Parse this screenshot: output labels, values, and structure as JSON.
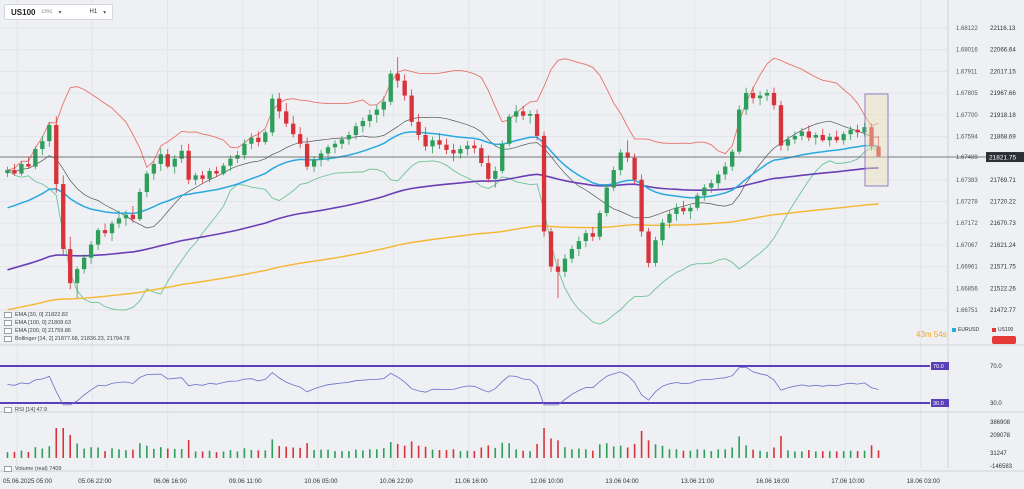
{
  "toolbar": {
    "symbol": "US100",
    "source": "cmc",
    "timeframe": "H1"
  },
  "colors": {
    "up": "#2e9e5b",
    "down": "#d8323a",
    "ema30": "#29a9e0",
    "ema100": "#6a3fb5",
    "ema200": "#f5b731",
    "boll_upper": "#e8736c",
    "boll_mid": "#555555",
    "boll_lower": "#6cc494",
    "rsi_line": "#6b6fc9",
    "rsi_level": "#5b3fb8",
    "price_badge": "#2b2f36",
    "eur_pill": "#29a9e0",
    "us100_pill": "#e53935"
  },
  "legend": [
    "EMA [30, 0]  21822.82",
    "EMA [100, 0]  21808.63",
    "EMA [200, 0]  21759.86",
    "Bollinger [14, 2]  21877.68,  21836.23,  21794.78"
  ],
  "rsi_label": "RSI [14]  47.9",
  "volume_label": "Volume (real)  7409",
  "timer": "43m 54s",
  "pills": {
    "eur": "EURUSD",
    "us100": "US100"
  },
  "chart_data": {
    "type": "candlestick",
    "price_axis_right": [
      "22116.13",
      "22066.64",
      "22017.15",
      "21967.66",
      "21918.18",
      "21868.69",
      "21821.75",
      "21769.71",
      "21720.22",
      "21670.73",
      "21621.24",
      "21571.75",
      "21522.26",
      "21472.77"
    ],
    "price_axis_left_eurusd": [
      "1.68122",
      "1.68016",
      "1.67911",
      "1.67805",
      "1.67700",
      "1.67594",
      "1.67489",
      "1.67383",
      "1.67278",
      "1.67172",
      "1.67067",
      "1.66961",
      "1.66856",
      "1.66751"
    ],
    "current_price": "21821.75",
    "x_tick_labels": [
      "05.06.2025  05:00",
      "05.06  22:00",
      "06.06  16:00",
      "09.06  11:00",
      "10.06  05:00",
      "10.06  22:00",
      "11.06  16:00",
      "12.06  10:00",
      "13.06  04:00",
      "13.06  21:00",
      "16.06  16:00",
      "17.06  10:00",
      "18.06  03:00"
    ],
    "candles_ohlc": [
      [
        21785,
        21800,
        21776,
        21792
      ],
      [
        21792,
        21806,
        21780,
        21784
      ],
      [
        21784,
        21812,
        21779,
        21806
      ],
      [
        21806,
        21822,
        21797,
        21800
      ],
      [
        21800,
        21846,
        21794,
        21840
      ],
      [
        21840,
        21870,
        21826,
        21858
      ],
      [
        21858,
        21902,
        21845,
        21895
      ],
      [
        21895,
        21915,
        21740,
        21760
      ],
      [
        21760,
        21780,
        21600,
        21612
      ],
      [
        21612,
        21640,
        21520,
        21534
      ],
      [
        21534,
        21572,
        21500,
        21566
      ],
      [
        21566,
        21600,
        21556,
        21592
      ],
      [
        21592,
        21630,
        21578,
        21622
      ],
      [
        21622,
        21660,
        21610,
        21655
      ],
      [
        21655,
        21670,
        21640,
        21648
      ],
      [
        21648,
        21676,
        21630,
        21670
      ],
      [
        21670,
        21700,
        21660,
        21682
      ],
      [
        21682,
        21700,
        21665,
        21690
      ],
      [
        21690,
        21710,
        21672,
        21680
      ],
      [
        21680,
        21750,
        21676,
        21742
      ],
      [
        21742,
        21790,
        21730,
        21784
      ],
      [
        21784,
        21812,
        21770,
        21806
      ],
      [
        21806,
        21842,
        21790,
        21828
      ],
      [
        21828,
        21840,
        21796,
        21800
      ],
      [
        21800,
        21826,
        21784,
        21818
      ],
      [
        21818,
        21850,
        21808,
        21836
      ],
      [
        21836,
        21852,
        21760,
        21770
      ],
      [
        21770,
        21786,
        21758,
        21780
      ],
      [
        21780,
        21790,
        21762,
        21772
      ],
      [
        21772,
        21796,
        21764,
        21790
      ],
      [
        21790,
        21800,
        21776,
        21784
      ],
      [
        21784,
        21808,
        21780,
        21802
      ],
      [
        21802,
        21826,
        21790,
        21818
      ],
      [
        21818,
        21836,
        21808,
        21826
      ],
      [
        21826,
        21862,
        21816,
        21852
      ],
      [
        21852,
        21876,
        21840,
        21866
      ],
      [
        21866,
        21880,
        21846,
        21856
      ],
      [
        21856,
        21884,
        21850,
        21878
      ],
      [
        21878,
        21965,
        21870,
        21955
      ],
      [
        21955,
        21968,
        21910,
        21926
      ],
      [
        21926,
        21945,
        21890,
        21898
      ],
      [
        21898,
        21916,
        21866,
        21874
      ],
      [
        21874,
        21890,
        21842,
        21852
      ],
      [
        21852,
        21866,
        21792,
        21800
      ],
      [
        21800,
        21824,
        21788,
        21816
      ],
      [
        21816,
        21838,
        21800,
        21830
      ],
      [
        21830,
        21850,
        21812,
        21844
      ],
      [
        21844,
        21860,
        21830,
        21852
      ],
      [
        21852,
        21870,
        21840,
        21862
      ],
      [
        21862,
        21880,
        21850,
        21872
      ],
      [
        21872,
        21900,
        21862,
        21892
      ],
      [
        21892,
        21912,
        21878,
        21904
      ],
      [
        21904,
        21930,
        21890,
        21918
      ],
      [
        21918,
        21940,
        21900,
        21930
      ],
      [
        21930,
        21960,
        21914,
        21948
      ],
      [
        21948,
        22020,
        21940,
        22012
      ],
      [
        22012,
        22050,
        21980,
        21996
      ],
      [
        21996,
        22010,
        21950,
        21962
      ],
      [
        21962,
        21976,
        21892,
        21902
      ],
      [
        21902,
        21920,
        21860,
        21872
      ],
      [
        21872,
        21890,
        21836,
        21846
      ],
      [
        21846,
        21868,
        21830,
        21860
      ],
      [
        21860,
        21876,
        21840,
        21850
      ],
      [
        21850,
        21864,
        21828,
        21838
      ],
      [
        21838,
        21852,
        21812,
        21830
      ],
      [
        21830,
        21848,
        21818,
        21840
      ],
      [
        21840,
        21858,
        21826,
        21848
      ],
      [
        21848,
        21860,
        21830,
        21842
      ],
      [
        21842,
        21850,
        21800,
        21808
      ],
      [
        21808,
        21826,
        21764,
        21772
      ],
      [
        21772,
        21800,
        21752,
        21790
      ],
      [
        21790,
        21860,
        21784,
        21852
      ],
      [
        21852,
        21920,
        21846,
        21914
      ],
      [
        21914,
        21940,
        21900,
        21926
      ],
      [
        21926,
        21938,
        21906,
        21916
      ],
      [
        21916,
        21928,
        21898,
        21920
      ],
      [
        21920,
        21930,
        21860,
        21870
      ],
      [
        21870,
        21880,
        21640,
        21652
      ],
      [
        21652,
        21660,
        21560,
        21572
      ],
      [
        21572,
        21590,
        21500,
        21560
      ],
      [
        21560,
        21600,
        21548,
        21590
      ],
      [
        21590,
        21620,
        21580,
        21612
      ],
      [
        21612,
        21640,
        21596,
        21630
      ],
      [
        21630,
        21656,
        21616,
        21648
      ],
      [
        21648,
        21662,
        21630,
        21640
      ],
      [
        21640,
        21700,
        21632,
        21694
      ],
      [
        21694,
        21760,
        21686,
        21752
      ],
      [
        21752,
        21800,
        21744,
        21792
      ],
      [
        21792,
        21840,
        21780,
        21832
      ],
      [
        21832,
        21860,
        21810,
        21820
      ],
      [
        21820,
        21830,
        21760,
        21770
      ],
      [
        21770,
        21782,
        21640,
        21652
      ],
      [
        21652,
        21660,
        21570,
        21580
      ],
      [
        21580,
        21640,
        21572,
        21632
      ],
      [
        21632,
        21680,
        21620,
        21672
      ],
      [
        21672,
        21700,
        21660,
        21692
      ],
      [
        21692,
        21716,
        21676,
        21706
      ],
      [
        21706,
        21722,
        21690,
        21698
      ],
      [
        21698,
        21712,
        21680,
        21706
      ],
      [
        21706,
        21740,
        21700,
        21734
      ],
      [
        21734,
        21760,
        21722,
        21752
      ],
      [
        21752,
        21770,
        21740,
        21762
      ],
      [
        21762,
        21790,
        21750,
        21782
      ],
      [
        21782,
        21810,
        21770,
        21800
      ],
      [
        21800,
        21840,
        21790,
        21834
      ],
      [
        21834,
        21940,
        21828,
        21930
      ],
      [
        21930,
        21980,
        21918,
        21968
      ],
      [
        21968,
        21982,
        21944,
        21956
      ],
      [
        21956,
        21972,
        21940,
        21962
      ],
      [
        21962,
        21976,
        21950,
        21968
      ],
      [
        21968,
        21980,
        21930,
        21940
      ],
      [
        21940,
        21950,
        21836,
        21848
      ],
      [
        21848,
        21870,
        21836,
        21862
      ],
      [
        21862,
        21880,
        21852,
        21870
      ],
      [
        21870,
        21888,
        21860,
        21880
      ],
      [
        21880,
        21894,
        21858,
        21866
      ],
      [
        21866,
        21878,
        21850,
        21872
      ],
      [
        21872,
        21886,
        21856,
        21860
      ],
      [
        21860,
        21876,
        21846,
        21868
      ],
      [
        21868,
        21882,
        21854,
        21860
      ],
      [
        21860,
        21880,
        21850,
        21874
      ],
      [
        21874,
        21892,
        21860,
        21884
      ],
      [
        21884,
        21896,
        21866,
        21878
      ],
      [
        21878,
        21900,
        21868,
        21890
      ],
      [
        21890,
        21898,
        21836,
        21846
      ],
      [
        21846,
        21870,
        21836,
        21822
      ]
    ],
    "rsi_levels": [
      70.0,
      30.0
    ],
    "volume_axis": [
      "386908",
      "209078",
      "31247",
      "-146583"
    ]
  }
}
